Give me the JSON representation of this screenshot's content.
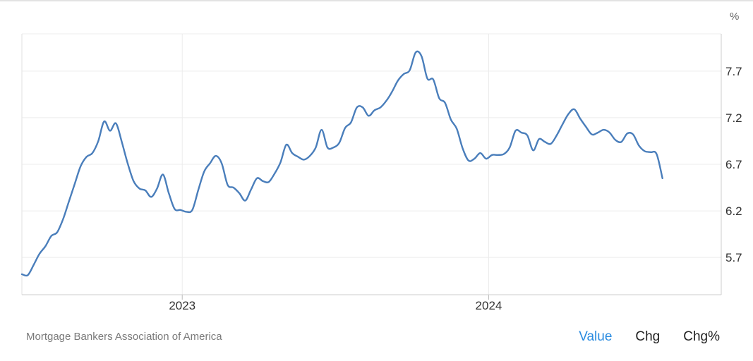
{
  "chart_data": {
    "type": "line",
    "unit": "%",
    "yticks": [
      "5.7",
      "6.2",
      "6.7",
      "7.2",
      "7.7"
    ],
    "xticks": [
      "2023",
      "2024"
    ],
    "ylim": [
      5.3,
      8.1
    ],
    "xlim": [
      "2022-06-24",
      "2024-10-04"
    ],
    "grid": true,
    "line_color": "#4a7ebb",
    "series": [
      {
        "values": [
          [
            "2022-06-24",
            5.52
          ],
          [
            "2022-07-01",
            5.51
          ],
          [
            "2022-07-08",
            5.62
          ],
          [
            "2022-07-15",
            5.74
          ],
          [
            "2022-07-22",
            5.82
          ],
          [
            "2022-07-29",
            5.93
          ],
          [
            "2022-08-05",
            5.97
          ],
          [
            "2022-08-12",
            6.11
          ],
          [
            "2022-08-19",
            6.3
          ],
          [
            "2022-08-26",
            6.49
          ],
          [
            "2022-09-02",
            6.68
          ],
          [
            "2022-09-09",
            6.78
          ],
          [
            "2022-09-16",
            6.82
          ],
          [
            "2022-09-23",
            6.95
          ],
          [
            "2022-09-30",
            7.16
          ],
          [
            "2022-10-07",
            7.06
          ],
          [
            "2022-10-14",
            7.14
          ],
          [
            "2022-10-21",
            6.94
          ],
          [
            "2022-10-28",
            6.71
          ],
          [
            "2022-11-04",
            6.52
          ],
          [
            "2022-11-11",
            6.44
          ],
          [
            "2022-11-18",
            6.42
          ],
          [
            "2022-11-25",
            6.35
          ],
          [
            "2022-12-02",
            6.44
          ],
          [
            "2022-12-09",
            6.59
          ],
          [
            "2022-12-16",
            6.39
          ],
          [
            "2022-12-23",
            6.22
          ],
          [
            "2022-12-30",
            6.21
          ],
          [
            "2023-01-06",
            6.19
          ],
          [
            "2023-01-13",
            6.21
          ],
          [
            "2023-01-20",
            6.42
          ],
          [
            "2023-01-27",
            6.62
          ],
          [
            "2023-02-03",
            6.71
          ],
          [
            "2023-02-10",
            6.79
          ],
          [
            "2023-02-17",
            6.71
          ],
          [
            "2023-02-24",
            6.48
          ],
          [
            "2023-03-03",
            6.45
          ],
          [
            "2023-03-10",
            6.39
          ],
          [
            "2023-03-17",
            6.31
          ],
          [
            "2023-03-24",
            6.43
          ],
          [
            "2023-03-31",
            6.55
          ],
          [
            "2023-04-07",
            6.52
          ],
          [
            "2023-04-14",
            6.51
          ],
          [
            "2023-04-21",
            6.6
          ],
          [
            "2023-04-28",
            6.72
          ],
          [
            "2023-05-05",
            6.91
          ],
          [
            "2023-05-12",
            6.82
          ],
          [
            "2023-05-19",
            6.78
          ],
          [
            "2023-05-26",
            6.75
          ],
          [
            "2023-06-02",
            6.79
          ],
          [
            "2023-06-09",
            6.88
          ],
          [
            "2023-06-16",
            7.07
          ],
          [
            "2023-06-23",
            6.88
          ],
          [
            "2023-06-30",
            6.88
          ],
          [
            "2023-07-07",
            6.93
          ],
          [
            "2023-07-14",
            7.09
          ],
          [
            "2023-07-21",
            7.15
          ],
          [
            "2023-07-28",
            7.31
          ],
          [
            "2023-08-04",
            7.31
          ],
          [
            "2023-08-11",
            7.22
          ],
          [
            "2023-08-18",
            7.28
          ],
          [
            "2023-08-25",
            7.31
          ],
          [
            "2023-09-01",
            7.38
          ],
          [
            "2023-09-08",
            7.48
          ],
          [
            "2023-09-15",
            7.6
          ],
          [
            "2023-09-22",
            7.67
          ],
          [
            "2023-09-29",
            7.71
          ],
          [
            "2023-10-06",
            7.9
          ],
          [
            "2023-10-13",
            7.86
          ],
          [
            "2023-10-20",
            7.62
          ],
          [
            "2023-10-27",
            7.61
          ],
          [
            "2023-11-03",
            7.41
          ],
          [
            "2023-11-10",
            7.36
          ],
          [
            "2023-11-17",
            7.18
          ],
          [
            "2023-11-24",
            7.08
          ],
          [
            "2023-12-01",
            6.87
          ],
          [
            "2023-12-08",
            6.74
          ],
          [
            "2023-12-15",
            6.76
          ],
          [
            "2023-12-22",
            6.82
          ],
          [
            "2023-12-29",
            6.76
          ],
          [
            "2024-01-05",
            6.8
          ],
          [
            "2024-01-12",
            6.8
          ],
          [
            "2024-01-19",
            6.81
          ],
          [
            "2024-01-26",
            6.88
          ],
          [
            "2024-02-02",
            7.06
          ],
          [
            "2024-02-09",
            7.04
          ],
          [
            "2024-02-16",
            7.01
          ],
          [
            "2024-02-23",
            6.85
          ],
          [
            "2024-03-01",
            6.97
          ],
          [
            "2024-03-08",
            6.94
          ],
          [
            "2024-03-15",
            6.92
          ],
          [
            "2024-03-22",
            7.01
          ],
          [
            "2024-03-29",
            7.13
          ],
          [
            "2024-04-05",
            7.24
          ],
          [
            "2024-04-12",
            7.29
          ],
          [
            "2024-04-19",
            7.19
          ],
          [
            "2024-04-26",
            7.1
          ],
          [
            "2024-05-03",
            7.02
          ],
          [
            "2024-05-10",
            7.04
          ],
          [
            "2024-05-17",
            7.07
          ],
          [
            "2024-05-24",
            7.04
          ],
          [
            "2024-05-31",
            6.96
          ],
          [
            "2024-06-07",
            6.94
          ],
          [
            "2024-06-14",
            7.03
          ],
          [
            "2024-06-21",
            7.02
          ],
          [
            "2024-06-28",
            6.9
          ],
          [
            "2024-07-05",
            6.84
          ],
          [
            "2024-07-12",
            6.83
          ],
          [
            "2024-07-19",
            6.81
          ],
          [
            "2024-07-26",
            6.55
          ]
        ]
      }
    ]
  },
  "footer": {
    "source": "Mortgage Bankers Association of America",
    "tabs": [
      {
        "label": "Value",
        "active": true
      },
      {
        "label": "Chg",
        "active": false
      },
      {
        "label": "Chg%",
        "active": false
      }
    ]
  }
}
